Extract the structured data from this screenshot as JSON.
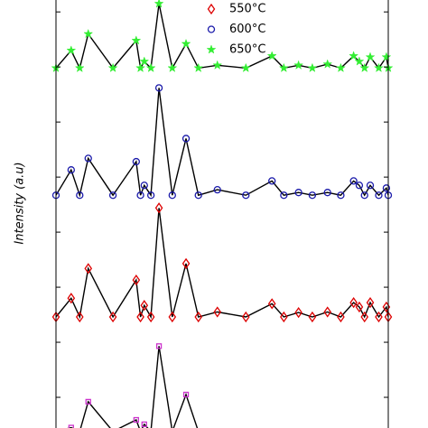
{
  "chart_data": {
    "type": "line",
    "ylabel": "Intensity (a.u)",
    "x": [
      10,
      13.2,
      15,
      16.8,
      22,
      26.9,
      27.8,
      28.6,
      30,
      31.7,
      34.5,
      37.4,
      40,
      44,
      50,
      55.5,
      58,
      61.1,
      64,
      67.2,
      70,
      72.7,
      73.9,
      75,
      76.2,
      78,
      79.6,
      80
    ],
    "xlim": [
      10,
      80
    ],
    "ylim": [
      0,
      8.2
    ],
    "yticks": [
      1,
      2,
      3,
      4,
      5,
      6,
      7,
      8
    ],
    "line_color": "#000000",
    "series": [
      {
        "color": "#cc33cc",
        "marker": "square",
        "values": [
          0.38,
          0.45,
          0.38,
          0.92,
          0.38,
          0.59,
          0.38,
          0.51,
          0.38,
          1.93,
          0.38,
          1.05,
          0.38,
          0.38,
          0.38,
          0.38,
          0.38,
          0.38,
          0.38,
          0.38,
          0.38,
          0.38,
          0.38,
          0.38,
          0.38,
          0.38,
          0.38,
          0.38
        ]
      },
      {
        "name": "550°C",
        "color": "#dd0000",
        "marker": "diamond",
        "values": [
          2.46,
          2.8,
          2.46,
          3.34,
          2.46,
          3.13,
          2.46,
          2.67,
          2.46,
          4.44,
          2.46,
          3.43,
          2.46,
          2.55,
          2.46,
          2.7,
          2.46,
          2.54,
          2.46,
          2.55,
          2.46,
          2.72,
          2.64,
          2.46,
          2.72,
          2.46,
          2.64,
          2.46
        ]
      },
      {
        "name": "600°C",
        "color": "#1a1aaa",
        "marker": "circle",
        "values": [
          4.67,
          5.13,
          4.67,
          5.34,
          4.67,
          5.28,
          4.67,
          4.85,
          4.67,
          6.62,
          4.67,
          5.7,
          4.67,
          4.77,
          4.67,
          4.93,
          4.67,
          4.72,
          4.67,
          4.72,
          4.67,
          4.93,
          4.85,
          4.67,
          4.85,
          4.67,
          4.8,
          4.67
        ]
      },
      {
        "name": "650°C",
        "color": "#33ee33",
        "marker": "star",
        "values": [
          6.98,
          7.3,
          6.98,
          7.6,
          6.98,
          7.48,
          6.98,
          7.1,
          6.98,
          8.15,
          6.98,
          7.42,
          6.98,
          7.03,
          6.98,
          7.2,
          6.98,
          7.03,
          6.98,
          7.05,
          6.98,
          7.2,
          7.1,
          6.98,
          7.18,
          6.98,
          7.18,
          6.98
        ]
      }
    ]
  }
}
